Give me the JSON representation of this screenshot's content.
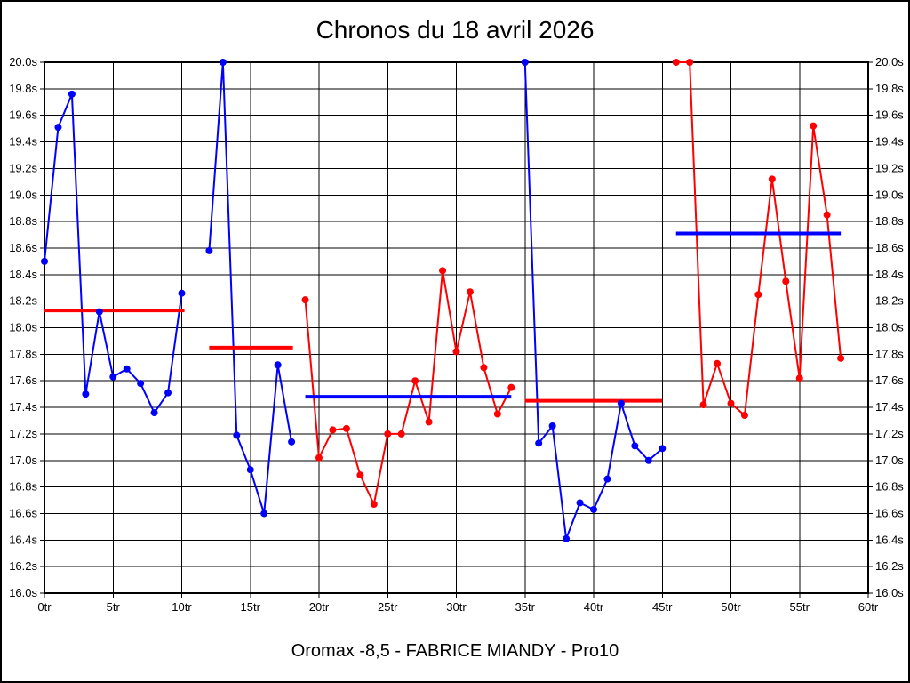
{
  "chart_data": {
    "type": "line",
    "title": "Chronos du 18 avril 2026",
    "caption": "Oromax -8,5 - FABRICE MIANDY - Pro10",
    "x_unit": "tr",
    "y_unit": "s",
    "xlim": [
      0,
      60
    ],
    "ylim": [
      16.0,
      20.0
    ],
    "grid": true,
    "marker": "circle",
    "colors": {
      "blue": "#0000ff",
      "red": "#ff0000",
      "grid": "#000000",
      "frame": "#000000"
    },
    "x_ticks": [
      {
        "v": 0,
        "label": "0tr"
      },
      {
        "v": 5,
        "label": "5tr"
      },
      {
        "v": 10,
        "label": "10tr"
      },
      {
        "v": 15,
        "label": "15tr"
      },
      {
        "v": 20,
        "label": "20tr"
      },
      {
        "v": 25,
        "label": "25tr"
      },
      {
        "v": 30,
        "label": "30tr"
      },
      {
        "v": 35,
        "label": "35tr"
      },
      {
        "v": 40,
        "label": "40tr"
      },
      {
        "v": 45,
        "label": "45tr"
      },
      {
        "v": 50,
        "label": "50tr"
      },
      {
        "v": 55,
        "label": "55tr"
      },
      {
        "v": 60,
        "label": "60tr"
      }
    ],
    "y_ticks": [
      {
        "v": 20.0,
        "label": "20.0s"
      },
      {
        "v": 19.8,
        "label": "19.8s"
      },
      {
        "v": 19.6,
        "label": "19.6s"
      },
      {
        "v": 19.4,
        "label": "19.4s"
      },
      {
        "v": 19.2,
        "label": "19.2s"
      },
      {
        "v": 19.0,
        "label": "19.0s"
      },
      {
        "v": 18.8,
        "label": "18.8s"
      },
      {
        "v": 18.6,
        "label": "18.6s"
      },
      {
        "v": 18.4,
        "label": "18.4s"
      },
      {
        "v": 18.2,
        "label": "18.2s"
      },
      {
        "v": 18.0,
        "label": "18.0s"
      },
      {
        "v": 17.8,
        "label": "17.8s"
      },
      {
        "v": 17.6,
        "label": "17.6s"
      },
      {
        "v": 17.4,
        "label": "17.4s"
      },
      {
        "v": 17.2,
        "label": "17.2s"
      },
      {
        "v": 17.0,
        "label": "17.0s"
      },
      {
        "v": 16.8,
        "label": "16.8s"
      },
      {
        "v": 16.6,
        "label": "16.6s"
      },
      {
        "v": 16.4,
        "label": "16.4s"
      },
      {
        "v": 16.2,
        "label": "16.2s"
      },
      {
        "v": 16.0,
        "label": "16.0s"
      }
    ],
    "series": [
      {
        "name": "stint-1",
        "color": "blue",
        "x": [
          0,
          1,
          2,
          3,
          4,
          5,
          6,
          7,
          8,
          9,
          10
        ],
        "y": [
          18.5,
          19.51,
          19.76,
          17.5,
          18.12,
          17.63,
          17.69,
          17.58,
          17.36,
          17.51,
          18.26
        ]
      },
      {
        "name": "stint-2",
        "color": "blue",
        "x": [
          12,
          13,
          14,
          15,
          16,
          17,
          18
        ],
        "y": [
          18.58,
          20.0,
          17.19,
          16.93,
          16.6,
          17.72,
          17.14
        ]
      },
      {
        "name": "stint-3",
        "color": "red",
        "x": [
          19,
          20,
          21,
          22,
          23,
          24,
          25,
          26,
          27,
          28,
          29,
          30,
          31,
          32,
          33,
          34
        ],
        "y": [
          18.21,
          17.02,
          17.23,
          17.24,
          16.89,
          16.67,
          17.2,
          17.2,
          17.6,
          17.29,
          18.43,
          17.82,
          18.27,
          17.7,
          17.35,
          17.55
        ]
      },
      {
        "name": "stint-4",
        "color": "blue",
        "x": [
          35,
          36,
          37,
          38,
          39,
          40,
          41,
          42,
          43,
          44,
          45
        ],
        "y": [
          20.0,
          17.13,
          17.26,
          16.41,
          16.68,
          16.63,
          16.86,
          17.43,
          17.11,
          17.0,
          17.09
        ]
      },
      {
        "name": "stint-5",
        "color": "red",
        "x": [
          46,
          47,
          48,
          49,
          50,
          51,
          52,
          53,
          54,
          55,
          56,
          57,
          58
        ],
        "y": [
          20.0,
          20.0,
          17.42,
          17.73,
          17.43,
          17.34,
          18.25,
          19.12,
          18.35,
          17.62,
          19.52,
          18.85,
          17.77
        ]
      }
    ],
    "average_lines": [
      {
        "name": "stint-1-average",
        "color": "red",
        "value": 18.13,
        "x_start": 0,
        "x_end": 10.2
      },
      {
        "name": "stint-2-average",
        "color": "red",
        "value": 17.85,
        "x_start": 12,
        "x_end": 18.1
      },
      {
        "name": "stint-3-average",
        "color": "blue",
        "value": 17.48,
        "x_start": 19,
        "x_end": 34
      },
      {
        "name": "stint-4-average",
        "color": "red",
        "value": 17.45,
        "x_start": 35,
        "x_end": 45
      },
      {
        "name": "stint-5-average",
        "color": "blue",
        "value": 18.71,
        "x_start": 46,
        "x_end": 58
      }
    ]
  }
}
